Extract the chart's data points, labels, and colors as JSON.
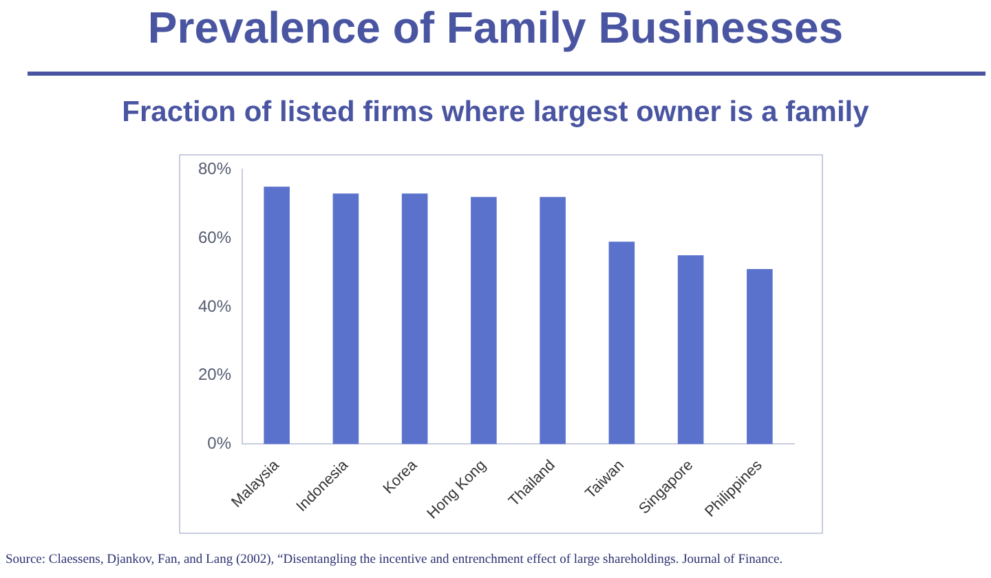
{
  "chart_data": {
    "type": "bar",
    "title": "Prevalence of Family Businesses",
    "subtitle": "Fraction of listed firms where largest owner is a family",
    "categories": [
      "Malaysia",
      "Indonesia",
      "Korea",
      "Hong Kong",
      "Thailand",
      "Taiwan",
      "Singapore",
      "Philippines"
    ],
    "values": [
      75,
      73,
      73,
      72,
      72,
      59,
      55,
      51
    ],
    "color": "#5a72cc",
    "ylim": [
      0,
      80
    ],
    "yticks": [
      {
        "value": 0,
        "label": "0%"
      },
      {
        "value": 20,
        "label": "20%"
      },
      {
        "value": 40,
        "label": "40%"
      },
      {
        "value": 60,
        "label": "60%"
      },
      {
        "value": 80,
        "label": "80%"
      }
    ],
    "grid": false,
    "legend": false,
    "annotations": [
      "Source: Claessens, Djankov, Fan, and Lang (2002), “Disentangling the incentive and entrenchment effect of large shareholdings. Journal of Finance."
    ]
  }
}
